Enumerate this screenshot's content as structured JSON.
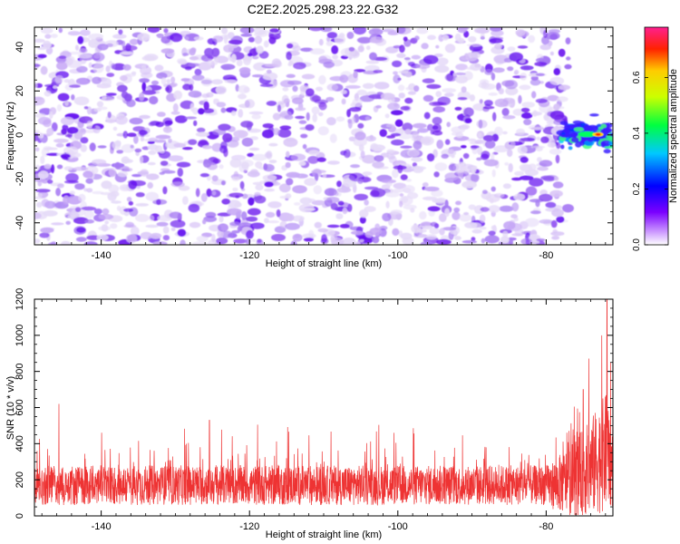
{
  "title": "C2E2.2025.298.23.22.G32",
  "colors": {
    "snr_line": "#ee3333",
    "spec_low": "#e0d0f6",
    "spec_mid": "#7b2cf0",
    "spec_high": "#1a00ff"
  },
  "chart_data": [
    {
      "type": "heatmap",
      "title": "C2E2.2025.298.23.22.G32",
      "xlabel": "Height of straight line (km)",
      "ylabel": "Frequency (Hz)",
      "xlim": [
        -149,
        -71
      ],
      "ylim": [
        -50,
        49
      ],
      "xticks": [
        "-140",
        "-120",
        "-100",
        "-80"
      ],
      "yticks": [
        "40",
        "20",
        "0",
        "-20",
        "-40"
      ],
      "xtick_values": [
        -140,
        -120,
        -100,
        -80
      ],
      "ytick_values": [
        40,
        20,
        0,
        -20,
        -40
      ],
      "colorbar": {
        "label": "Normalized spectral amplitude",
        "range": [
          0,
          0.78
        ],
        "ticks": [
          "0.0",
          "0.2",
          "0.4",
          "0.6"
        ],
        "tick_values": [
          0.0,
          0.2,
          0.4,
          0.6
        ]
      },
      "description_values": {
        "noise_region_x": [
          -149,
          -78
        ],
        "signal_center_frequency": 0,
        "signal_region_x": [
          -78,
          -71
        ],
        "peak_amplitude": 0.7,
        "peak_height": -73
      }
    },
    {
      "type": "line",
      "xlabel": "Height of straight line (km)",
      "ylabel": "SNR (10 * v/v)",
      "xlim": [
        -149,
        -71
      ],
      "ylim": [
        0,
        1200
      ],
      "xticks": [
        "-140",
        "-120",
        "-100",
        "-80"
      ],
      "yticks": [
        "0",
        "200",
        "400",
        "600",
        "800",
        "1000",
        "1200"
      ],
      "xtick_values": [
        -140,
        -120,
        -100,
        -80
      ],
      "ytick_values": [
        0,
        200,
        400,
        600,
        800,
        1000,
        1200
      ],
      "series": [
        {
          "name": "SNR",
          "baseline_mean": 170,
          "noise_range": [
            20,
            500
          ],
          "notable_points": [
            {
              "x": -145.7,
              "y": 620
            },
            {
              "x": -125.4,
              "y": 530
            },
            {
              "x": -75,
              "y": 700
            },
            {
              "x": -72.5,
              "y": 1000
            },
            {
              "x": -71.8,
              "y": 1200
            },
            {
              "x": -71.3,
              "y": 850
            }
          ]
        }
      ]
    }
  ]
}
